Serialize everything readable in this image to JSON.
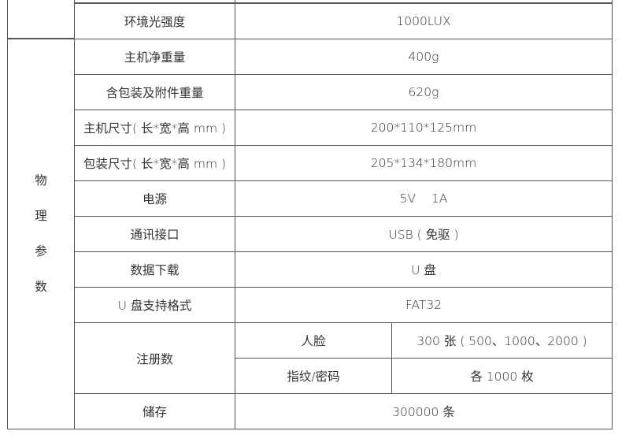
{
  "table": {
    "top_row": {
      "label": "环境光强度",
      "value": "1000LUX"
    },
    "group_label": [
      "物",
      "理",
      "参",
      "数"
    ],
    "rows": [
      {
        "label": "主机净重量",
        "value": "400g"
      },
      {
        "label": "含包装及附件重量",
        "value": "620g"
      },
      {
        "label": "主机尺寸( 长*宽*高 mm )",
        "value": "200*110*125mm"
      },
      {
        "label": "包装尺寸( 长*宽*高 mm )",
        "value": "205*134*180mm"
      },
      {
        "label": "电源",
        "value": "5V    1A"
      },
      {
        "label": "通讯接口",
        "value": "USB ( 免驱 )"
      },
      {
        "label": "数据下载",
        "value": "U 盘"
      },
      {
        "label": "U 盘支持格式",
        "value": "FAT32"
      }
    ],
    "register": {
      "label": "注册数",
      "sub": [
        {
          "label": "人脸",
          "value": "300 张 ( 500、1000、2000 )"
        },
        {
          "label": "指纹/密码",
          "value": "各 1000 枚"
        }
      ]
    },
    "storage": {
      "label": "储存",
      "value": "300000 条"
    }
  }
}
